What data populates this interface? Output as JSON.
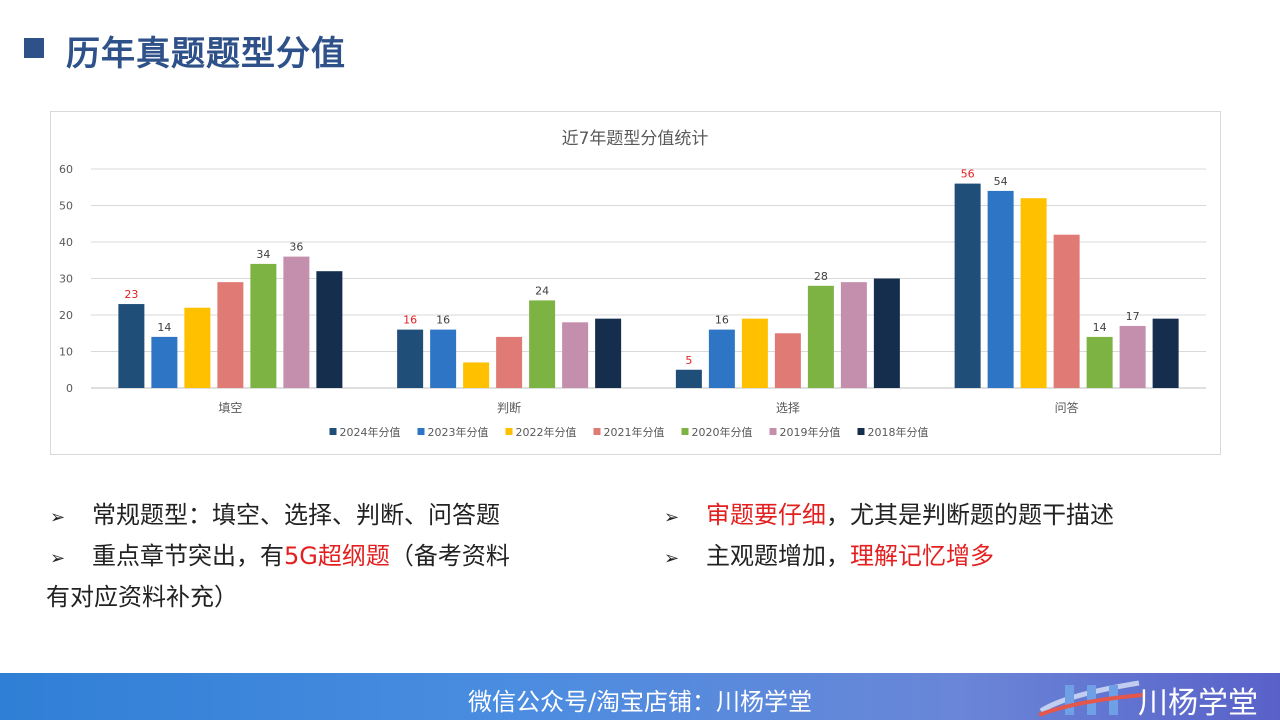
{
  "header": {
    "title": "历年真题题型分值"
  },
  "chart_data": {
    "type": "bar",
    "title": "近7年题型分值统计",
    "categories": [
      "填空",
      "判断",
      "选择",
      "问答"
    ],
    "ylim": [
      0,
      60
    ],
    "yticks": [
      "0",
      "10",
      "20",
      "30",
      "40",
      "50",
      "60"
    ],
    "grid": true,
    "legend_position": "bottom",
    "series": [
      {
        "name": "2024年分值",
        "color": "#1f4e79",
        "values": [
          23,
          16,
          5,
          56
        ]
      },
      {
        "name": "2023年分值",
        "color": "#2e75c6",
        "values": [
          14,
          16,
          16,
          54
        ]
      },
      {
        "name": "2022年分值",
        "color": "#ffc000",
        "values": [
          22,
          7,
          19,
          52
        ]
      },
      {
        "name": "2021年分值",
        "color": "#e07a75",
        "values": [
          29,
          14,
          15,
          42
        ]
      },
      {
        "name": "2020年分值",
        "color": "#7cb342",
        "values": [
          34,
          24,
          28,
          14
        ]
      },
      {
        "name": "2019年分值",
        "color": "#c48ead",
        "values": [
          36,
          18,
          29,
          17
        ]
      },
      {
        "name": "2018年分值",
        "color": "#162e4d",
        "values": [
          32,
          19,
          30,
          19
        ]
      }
    ],
    "data_labels": [
      {
        "series": 0,
        "category": 0,
        "text": "23",
        "color": "#e31f1f"
      },
      {
        "series": 1,
        "category": 0,
        "text": "14",
        "color": "#404040"
      },
      {
        "series": 4,
        "category": 0,
        "text": "34",
        "color": "#404040"
      },
      {
        "series": 5,
        "category": 0,
        "text": "36",
        "color": "#404040"
      },
      {
        "series": 0,
        "category": 1,
        "text": "16",
        "color": "#e31f1f"
      },
      {
        "series": 1,
        "category": 1,
        "text": "16",
        "color": "#404040"
      },
      {
        "series": 4,
        "category": 1,
        "text": "24",
        "color": "#404040"
      },
      {
        "series": 0,
        "category": 2,
        "text": "5",
        "color": "#e31f1f"
      },
      {
        "series": 1,
        "category": 2,
        "text": "16",
        "color": "#404040"
      },
      {
        "series": 4,
        "category": 2,
        "text": "28",
        "color": "#404040"
      },
      {
        "series": 0,
        "category": 3,
        "text": "56",
        "color": "#e31f1f"
      },
      {
        "series": 1,
        "category": 3,
        "text": "54",
        "color": "#404040"
      },
      {
        "series": 4,
        "category": 3,
        "text": "14",
        "color": "#404040"
      },
      {
        "series": 5,
        "category": 3,
        "text": "17",
        "color": "#404040"
      }
    ]
  },
  "bullets_left": {
    "arrow": "➢",
    "item1": "常规题型：填空、选择、判断、问答题",
    "item2_prefix": "重点章节突出，有",
    "item2_highlight": "5G超纲题",
    "item2_suffix": "（备考资料",
    "item2_line2": "有对应资料补充）"
  },
  "bullets_right": {
    "arrow": "➢",
    "item1_highlight": "审题要仔细",
    "item1_suffix": "，尤其是判断题的题干描述",
    "item2_prefix": "主观题增加，",
    "item2_highlight": "理解记忆增多"
  },
  "footer": {
    "text": "微信公众号/淘宝店铺：川杨学堂",
    "logo_text": "川杨学堂"
  },
  "colors": {
    "accent": "#2e5189",
    "highlight": "#e31f1f"
  }
}
